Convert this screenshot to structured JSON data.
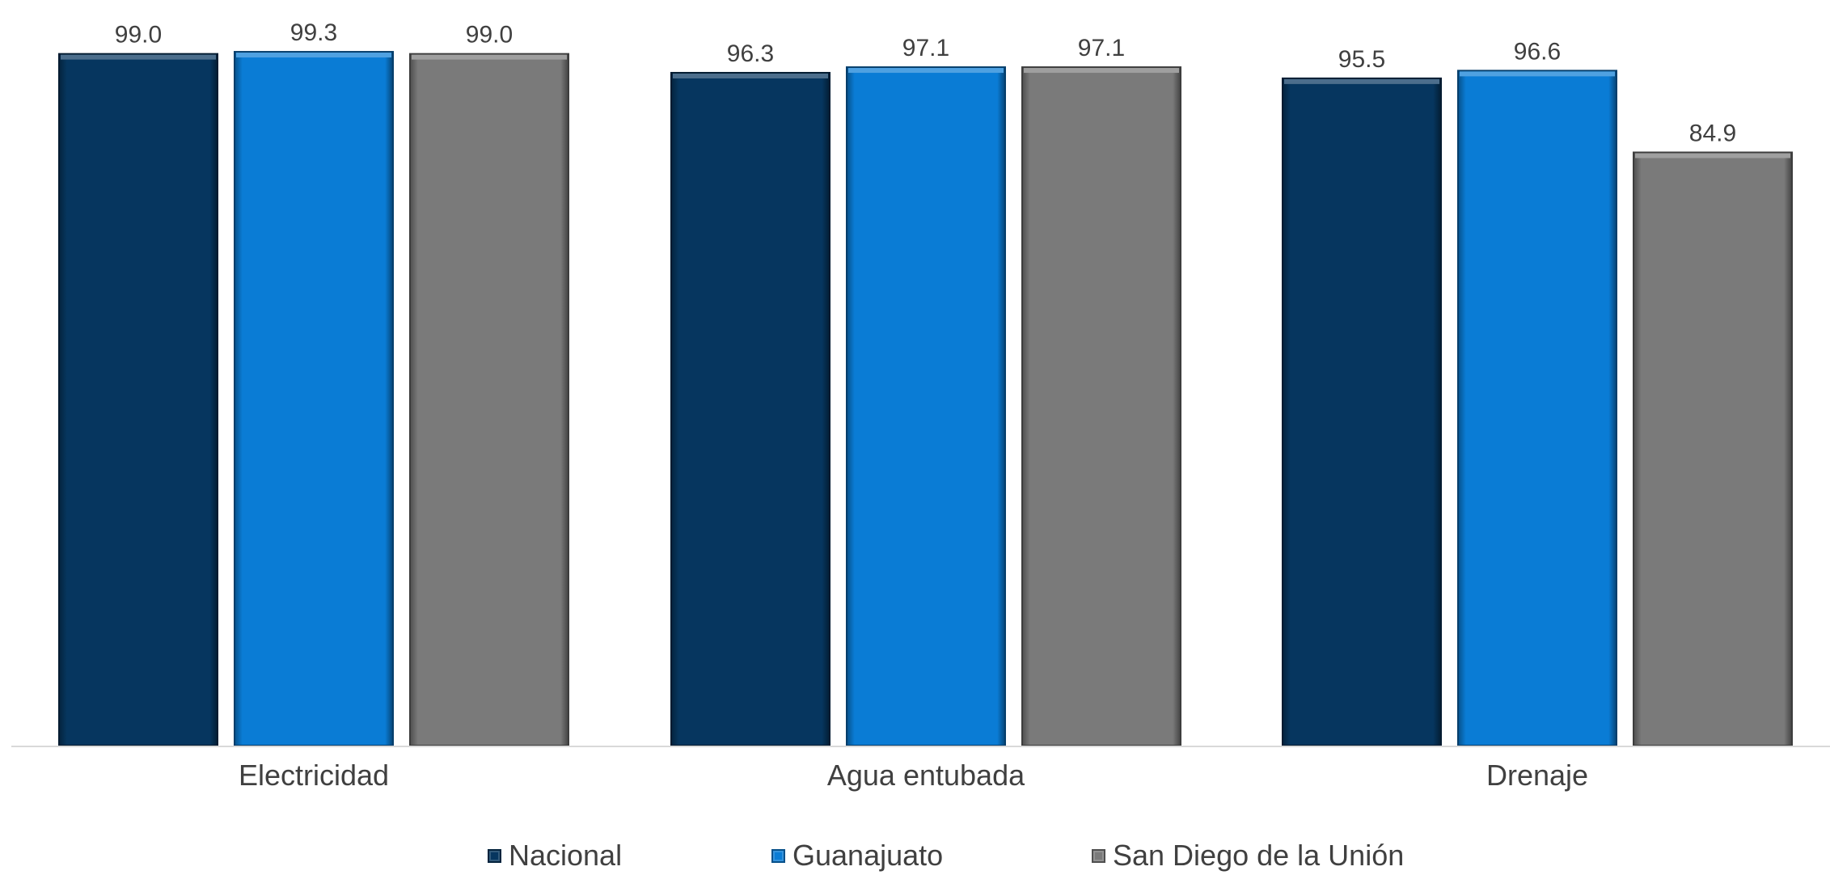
{
  "chart_data": {
    "type": "bar",
    "categories": [
      "Electricidad",
      "Agua entubada",
      "Drenaje"
    ],
    "series": [
      {
        "name": "Nacional",
        "values": [
          99.0,
          96.3,
          95.5
        ],
        "color": "#06365F"
      },
      {
        "name": "Guanajuato",
        "values": [
          99.3,
          97.1,
          96.6
        ],
        "color": "#0A7CD5"
      },
      {
        "name": "San Diego de la Unión",
        "values": [
          99.0,
          97.1,
          84.9
        ],
        "color": "#7A7A7A"
      }
    ],
    "value_labels": [
      [
        "99.0",
        "96.3",
        "95.5"
      ],
      [
        "99.3",
        "97.1",
        "96.6"
      ],
      [
        "99.0",
        "97.1",
        "84.9"
      ]
    ],
    "title": "",
    "xlabel": "",
    "ylabel": "",
    "ylim": [
      0,
      100
    ],
    "grid": false,
    "legend": "bottom",
    "axis_color": "#D9D9D9",
    "text_color": "#404040"
  }
}
